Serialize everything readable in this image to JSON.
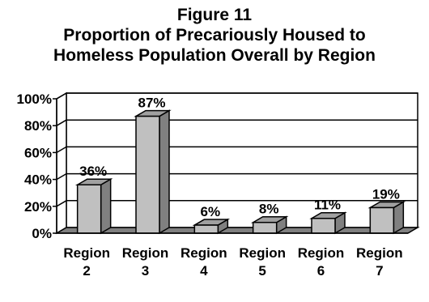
{
  "chart_data": {
    "type": "bar",
    "title_lines": [
      "Figure 11",
      "Proportion of Precariously Housed to",
      "Homeless Population Overall by Region"
    ],
    "categories": [
      {
        "line1": "Region",
        "line2": "2"
      },
      {
        "line1": "Region",
        "line2": "3"
      },
      {
        "line1": "Region",
        "line2": "4"
      },
      {
        "line1": "Region",
        "line2": "5"
      },
      {
        "line1": "Region",
        "line2": "6"
      },
      {
        "line1": "Region",
        "line2": "7"
      }
    ],
    "values": [
      36,
      87,
      6,
      8,
      11,
      19
    ],
    "data_labels": [
      "36%",
      "87%",
      "6%",
      "8%",
      "11%",
      "19%"
    ],
    "y_ticks": [
      {
        "value": 0,
        "label": "0%"
      },
      {
        "value": 20,
        "label": "20%"
      },
      {
        "value": 40,
        "label": "40%"
      },
      {
        "value": 60,
        "label": "60%"
      },
      {
        "value": 80,
        "label": "80%"
      },
      {
        "value": 100,
        "label": "100%"
      }
    ],
    "ylim": [
      0,
      100
    ],
    "grid": true,
    "three_d": true,
    "bar_color": "#c0c0c0",
    "bar_side_color": "#808080",
    "bar_top_color": "#a0a0a0",
    "floor_color": "#808080"
  }
}
